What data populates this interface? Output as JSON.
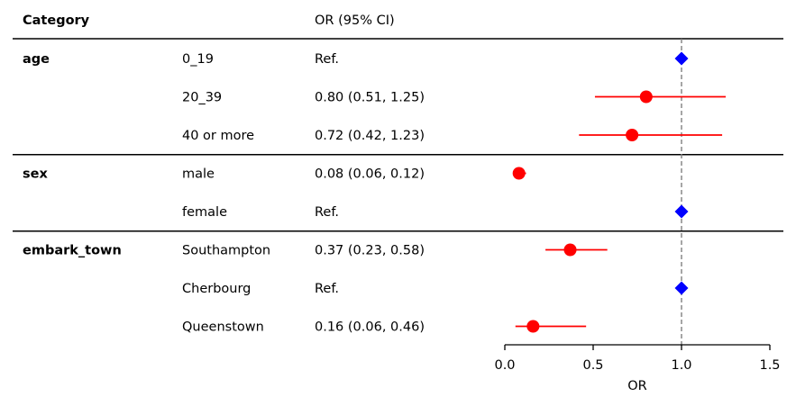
{
  "chart_data": {
    "type": "scatter",
    "subtype": "forest-plot",
    "headers": {
      "category": "Category",
      "estimate": "OR (95% CI)"
    },
    "xlabel": "OR",
    "xlim": [
      0.0,
      1.5
    ],
    "xticks": [
      "0.0",
      "0.5",
      "1.0",
      "1.5"
    ],
    "reference_line": 1.0,
    "colors": {
      "estimate_marker": "#ff0000",
      "reference_marker": "#0000ff",
      "reference_line": "#808080"
    },
    "groups": [
      {
        "name": "age",
        "rows": [
          {
            "level": "0_19",
            "text": "Ref.",
            "ref": true,
            "or": 1.0
          },
          {
            "level": "20_39",
            "text": "0.80 (0.51, 1.25)",
            "ref": false,
            "or": 0.8,
            "lo": 0.51,
            "hi": 1.25
          },
          {
            "level": "40 or more",
            "text": "0.72 (0.42, 1.23)",
            "ref": false,
            "or": 0.72,
            "lo": 0.42,
            "hi": 1.23
          }
        ]
      },
      {
        "name": "sex",
        "rows": [
          {
            "level": "male",
            "text": "0.08 (0.06, 0.12)",
            "ref": false,
            "or": 0.08,
            "lo": 0.06,
            "hi": 0.12
          },
          {
            "level": "female",
            "text": "Ref.",
            "ref": true,
            "or": 1.0
          }
        ]
      },
      {
        "name": "embark_town",
        "rows": [
          {
            "level": "Southampton",
            "text": "0.37 (0.23, 0.58)",
            "ref": false,
            "or": 0.37,
            "lo": 0.23,
            "hi": 0.58
          },
          {
            "level": "Cherbourg",
            "text": "Ref.",
            "ref": true,
            "or": 1.0
          },
          {
            "level": "Queenstown",
            "text": "0.16 (0.06, 0.46)",
            "ref": false,
            "or": 0.16,
            "lo": 0.06,
            "hi": 0.46
          }
        ]
      }
    ]
  }
}
